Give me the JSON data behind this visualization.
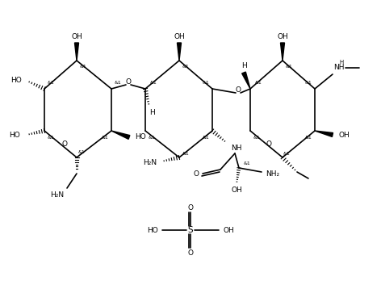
{
  "bg_color": "#ffffff",
  "line_color": "#000000",
  "text_color": "#000000",
  "font_size": 6.5,
  "lw": 1.2,
  "fig_width": 4.72,
  "fig_height": 3.53,
  "dpi": 100,
  "xlim": [
    0,
    472
  ],
  "ylim": [
    0,
    353
  ]
}
